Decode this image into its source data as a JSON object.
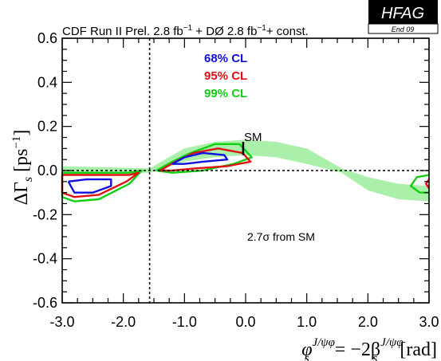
{
  "chart_data": {
    "type": "contour",
    "title": "CDF  Run II Prel. 2.8 fb",
    "title_sup1": "−1",
    "title_mid": " + DØ  2.8 fb",
    "title_sup2": "−1",
    "title_end": "+ const.",
    "badge": {
      "name": "HFAG",
      "sub": "End 09"
    },
    "xlabel": {
      "main": "φ",
      "sub": "s",
      "sup": "J/ψφ",
      "eq": " = −2β",
      "sub2": "s",
      "sup2": "J/ψφ",
      "unit": "[rad]"
    },
    "ylabel": {
      "main": "ΔΓ",
      "sub": "s",
      "unit": "[ps",
      "unit_sup": "−1",
      "unit_end": "]"
    },
    "xlim": [
      -3.0,
      3.0
    ],
    "ylim": [
      -0.6,
      0.6
    ],
    "x_ticks": [
      "-3.0",
      "-2.0",
      "-1.0",
      "0.0",
      "1.0",
      "2.0",
      "3.0"
    ],
    "x_tick_values": [
      -3.0,
      -2.0,
      -1.0,
      0.0,
      1.0,
      2.0,
      3.0
    ],
    "y_ticks": [
      "-0.6",
      "-0.4",
      "-0.2",
      "0.0",
      "0.2",
      "0.4",
      "0.6"
    ],
    "y_tick_values": [
      -0.6,
      -0.4,
      -0.2,
      0.0,
      0.2,
      0.4,
      0.6
    ],
    "legend": [
      {
        "label": "68% CL",
        "color": "#1010e0"
      },
      {
        "label": "95% CL",
        "color": "#e01010"
      },
      {
        "label": "99% CL",
        "color": "#10d010"
      }
    ],
    "sm_point": {
      "label": "SM",
      "x": -0.04,
      "y_low": 0.07,
      "y_high": 0.13
    },
    "annotation": {
      "text": "2.7σ  from SM"
    },
    "vertical_dashed_x": -1.5708,
    "horizontal_dashed_y": 0.0,
    "band_color": "#aaf0aa",
    "band": [
      {
        "x": -3.0,
        "lo": -0.02,
        "hi": 0.02
      },
      {
        "x": -1.57,
        "lo": -0.01,
        "hi": 0.01
      },
      {
        "x": -1.0,
        "lo": 0.04,
        "hi": 0.1
      },
      {
        "x": -0.5,
        "lo": 0.06,
        "hi": 0.13
      },
      {
        "x": 0.0,
        "lo": 0.07,
        "hi": 0.14
      },
      {
        "x": 0.5,
        "lo": 0.06,
        "hi": 0.13
      },
      {
        "x": 1.0,
        "lo": 0.03,
        "hi": 0.1
      },
      {
        "x": 1.57,
        "lo": -0.01,
        "hi": 0.01
      },
      {
        "x": 2.0,
        "lo": -0.09,
        "hi": -0.03
      },
      {
        "x": 2.5,
        "lo": -0.13,
        "hi": -0.06
      },
      {
        "x": 3.0,
        "lo": -0.14,
        "hi": -0.07
      }
    ],
    "contours": [
      {
        "level": "99% CL",
        "color": "#10d010",
        "points": [
          [
            -1.46,
            0.0
          ],
          [
            -1.2,
            0.04
          ],
          [
            -0.9,
            0.08
          ],
          [
            -0.5,
            0.12
          ],
          [
            -0.1,
            0.12
          ],
          [
            0.1,
            0.06
          ],
          [
            -0.2,
            0.03
          ],
          [
            -0.7,
            0.0
          ],
          [
            -1.2,
            -0.01
          ],
          [
            -1.46,
            0.0
          ]
        ]
      },
      {
        "level": "95% CL",
        "color": "#e01010",
        "points": [
          [
            -1.4,
            0.0
          ],
          [
            -1.15,
            0.04
          ],
          [
            -0.85,
            0.08
          ],
          [
            -0.45,
            0.1
          ],
          [
            -0.05,
            0.08
          ],
          [
            0.08,
            0.04
          ],
          [
            -0.3,
            0.02
          ],
          [
            -0.8,
            0.01
          ],
          [
            -1.2,
            0.0
          ],
          [
            -1.4,
            0.0
          ]
        ]
      },
      {
        "level": "68% CL",
        "color": "#1010e0",
        "points": [
          [
            -1.2,
            0.03
          ],
          [
            -1.0,
            0.06
          ],
          [
            -0.7,
            0.08
          ],
          [
            -0.35,
            0.07
          ],
          [
            -0.3,
            0.05
          ],
          [
            -0.7,
            0.04
          ],
          [
            -1.0,
            0.03
          ],
          [
            -1.2,
            0.03
          ]
        ]
      },
      {
        "level": "99% CL",
        "color": "#10d010",
        "points": [
          [
            -3.0,
            -0.01
          ],
          [
            -2.4,
            -0.01
          ],
          [
            -1.9,
            -0.01
          ],
          [
            -1.7,
            0.0
          ],
          [
            -1.9,
            -0.06
          ],
          [
            -2.4,
            -0.13
          ],
          [
            -2.8,
            -0.14
          ],
          [
            -3.0,
            -0.12
          ],
          [
            -3.0,
            -0.01
          ]
        ]
      },
      {
        "level": "95% CL",
        "color": "#e01010",
        "points": [
          [
            -3.0,
            -0.02
          ],
          [
            -2.4,
            -0.02
          ],
          [
            -1.9,
            -0.02
          ],
          [
            -1.75,
            -0.01
          ],
          [
            -1.95,
            -0.05
          ],
          [
            -2.4,
            -0.11
          ],
          [
            -2.8,
            -0.12
          ],
          [
            -3.0,
            -0.1
          ],
          [
            -3.0,
            -0.02
          ]
        ]
      },
      {
        "level": "68% CL",
        "color": "#1010e0",
        "points": [
          [
            -2.9,
            -0.05
          ],
          [
            -2.6,
            -0.04
          ],
          [
            -2.2,
            -0.04
          ],
          [
            -2.2,
            -0.07
          ],
          [
            -2.5,
            -0.1
          ],
          [
            -2.8,
            -0.1
          ],
          [
            -2.9,
            -0.05
          ]
        ]
      },
      {
        "level": "99% CL",
        "color": "#10d010",
        "points": [
          [
            3.0,
            -0.02
          ],
          [
            2.8,
            -0.03
          ],
          [
            2.7,
            -0.07
          ],
          [
            2.85,
            -0.1
          ],
          [
            3.0,
            -0.1
          ]
        ]
      },
      {
        "level": "95% CL",
        "color": "#e01010",
        "points": [
          [
            3.0,
            -0.04
          ],
          [
            2.95,
            -0.06
          ],
          [
            3.0,
            -0.08
          ]
        ]
      }
    ],
    "grid": false
  }
}
